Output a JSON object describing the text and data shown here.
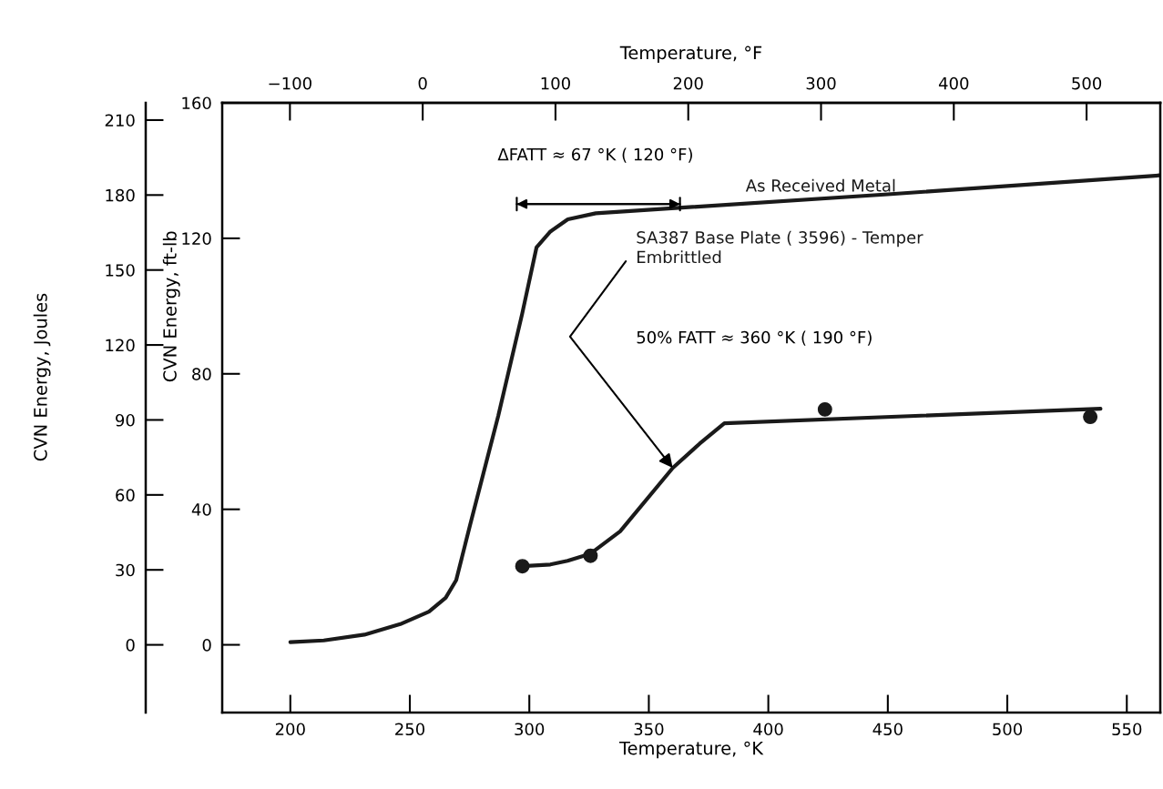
{
  "chart_data": {
    "type": "line",
    "xlabel": "Temperature, °K",
    "ylabel": "CVN Energy, ft-lb",
    "y2label": "CVN Energy, Joules",
    "x2label": "Temperature, °F",
    "xlim": [
      171.5,
      564
    ],
    "xticks": [
      200,
      250,
      300,
      350,
      400,
      450,
      500,
      550
    ],
    "ylim": [
      -20,
      160
    ],
    "yticks": [
      0,
      40,
      80,
      120,
      160
    ],
    "y2lim": [
      -27.1,
      216.9
    ],
    "y2ticks": [
      0,
      30,
      60,
      90,
      120,
      150,
      180,
      210
    ],
    "x2lim": [
      -151,
      555.5
    ],
    "x2ticks": [
      {
        "value": -100,
        "label": "−100"
      },
      0,
      100,
      200,
      300,
      400,
      500
    ],
    "grid": false,
    "legend": false,
    "marker": "none",
    "line_style": "solid",
    "series": [
      {
        "name": "As Received Metal",
        "color": "#1a1a1a",
        "x": [
          200,
          214,
          231,
          246,
          258,
          265,
          269.4,
          275.3,
          287,
          297,
          303,
          308.8,
          316.1,
          327.8,
          450,
          564
        ],
        "values": [
          0.8,
          1.3,
          3.0,
          6.1,
          9.8,
          13.9,
          19.1,
          35.6,
          67.6,
          97.7,
          117.3,
          122,
          125.6,
          127.4,
          133,
          138.6
        ]
      },
      {
        "name": "SA387 Base Plate ( 3596) - Temper\nEmbrittled",
        "color": "#1a1a1a",
        "x": [
          297.1,
          308.8,
          316,
          325.6,
          338,
          360,
          371.3,
          381.6,
          539
        ],
        "values": [
          23.2,
          23.7,
          24.8,
          26.9,
          33.5,
          52.2,
          59.4,
          65.4,
          69.7
        ]
      },
      {
        "color": "#1a1a1a",
        "type": "scatter",
        "marker": "circle",
        "x": [
          297.1,
          325.6,
          423.7,
          534.7
        ],
        "values": [
          23.2,
          26.3,
          69.5,
          67.3
        ]
      }
    ],
    "annotations": [
      "ΔFATT ≈ 67 °K ( 120 °F)",
      "50% FATT ≈ 360 °K ( 190 °F)"
    ]
  }
}
